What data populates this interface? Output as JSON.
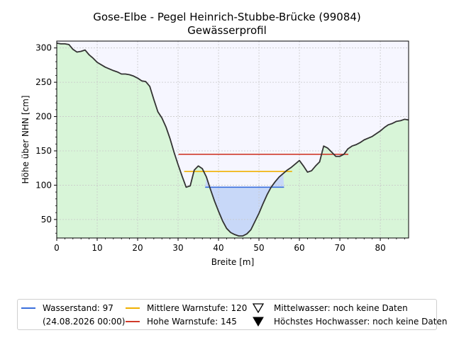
{
  "title": "Gose-Elbe - Pegel Heinrich-Stubbe-Brücke (99084)",
  "subtitle": "Gewässerprofil",
  "chart_data": {
    "type": "area",
    "xlabel": "Breite [m]",
    "ylabel": "Höhe über NHN [cm]",
    "xlim": [
      0,
      87
    ],
    "ylim": [
      23,
      310
    ],
    "xticks": [
      0,
      10,
      20,
      30,
      40,
      50,
      60,
      70,
      80
    ],
    "yticks": [
      50,
      100,
      150,
      200,
      250,
      300
    ],
    "grid": true,
    "profile": {
      "x": [
        0,
        1,
        2,
        3,
        4,
        5,
        6,
        7,
        8,
        9,
        10,
        12,
        14,
        15,
        16,
        17,
        18,
        19,
        20,
        21,
        22,
        23,
        24,
        25,
        26,
        27,
        28,
        29,
        30,
        31,
        32,
        33,
        34,
        35,
        36,
        37,
        38,
        39,
        40,
        41,
        42,
        43,
        44,
        45,
        46,
        47,
        48,
        49,
        50,
        51,
        52,
        53,
        54,
        55,
        56,
        57,
        58,
        59,
        60,
        61,
        62,
        63,
        64,
        65,
        66,
        67,
        68,
        69,
        70,
        71,
        72,
        73,
        74,
        75,
        76,
        78,
        80,
        81,
        82,
        83,
        84,
        85,
        86,
        87
      ],
      "y": [
        307,
        306,
        306,
        305,
        298,
        294,
        295,
        297,
        290,
        285,
        279,
        272,
        267,
        265,
        262,
        262,
        261,
        259,
        256,
        252,
        251,
        244,
        225,
        207,
        198,
        185,
        168,
        148,
        130,
        113,
        97,
        99,
        122,
        128,
        124,
        112,
        94,
        77,
        62,
        48,
        37,
        31,
        28,
        26,
        26,
        29,
        35,
        47,
        59,
        73,
        86,
        97,
        105,
        112,
        117,
        122,
        126,
        131,
        136,
        128,
        119,
        121,
        128,
        134,
        157,
        154,
        148,
        142,
        142,
        145,
        153,
        157,
        159,
        162,
        166,
        171,
        179,
        184,
        188,
        190,
        193,
        194,
        196,
        195
      ]
    },
    "levels": [
      {
        "name": "Wasserstand",
        "value": 97,
        "x_range": [
          36.7,
          56.2
        ],
        "color": "#3a6fdc"
      },
      {
        "name": "Mittlere Warnstufe",
        "value": 120,
        "x_range": [
          31.5,
          58.2
        ],
        "color": "#f0b000"
      },
      {
        "name": "Hohe Warnstufe",
        "value": 145,
        "x_range": [
          30.1,
          72.1
        ],
        "color": "#d03a2a"
      }
    ],
    "colors": {
      "terrain_fill": "#d8f5d8",
      "sky_fill": "#f6f6ff",
      "water_fill": "#c8d8f8",
      "profile_line": "#333333"
    }
  },
  "legend": {
    "items": [
      {
        "label": "Wasserstand: 97",
        "color": "#3a6fdc"
      },
      {
        "label": "(24.08.2026 00:00)"
      },
      {
        "label": "Mittlere Warnstufe: 120",
        "color": "#f0b000"
      },
      {
        "label": "Hohe Warnstufe: 145",
        "color": "#d03a2a"
      },
      {
        "label": "Mittelwasser: noch keine Daten",
        "icon": "triangle-down-outline"
      },
      {
        "label": "Höchstes Hochwasser: noch keine Daten",
        "icon": "triangle-down-filled"
      }
    ]
  }
}
